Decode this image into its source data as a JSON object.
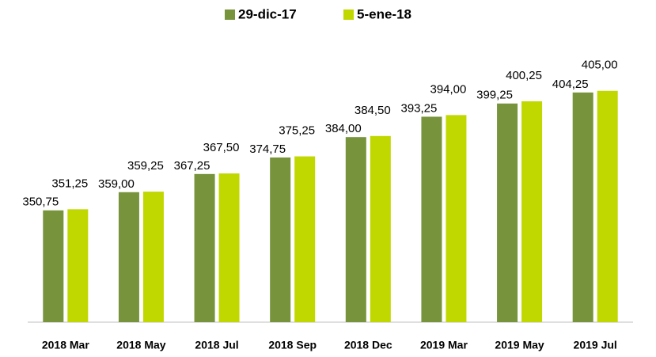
{
  "chart_data": {
    "type": "bar",
    "categories": [
      "2018 Mar",
      "2018 May",
      "2018 Jul",
      "2018 Sep",
      "2018 Dec",
      "2019 Mar",
      "2019 May",
      "2019 Jul"
    ],
    "series": [
      {
        "name": "29-dic-17",
        "color": "#77933c",
        "values": [
          350.75,
          359.0,
          367.25,
          374.75,
          384.0,
          393.25,
          399.25,
          404.25
        ],
        "value_labels": [
          "350,75",
          "359,00",
          "367,25",
          "374,75",
          "384,00",
          "393,25",
          "399,25",
          "404,25"
        ]
      },
      {
        "name": "5-ene-18",
        "color": "#c0d800",
        "values": [
          351.25,
          359.25,
          367.5,
          375.25,
          384.5,
          394.0,
          400.25,
          405.0
        ],
        "value_labels": [
          "351,25",
          "359,25",
          "367,50",
          "375,25",
          "384,50",
          "394,00",
          "400,25",
          "405,00"
        ]
      }
    ],
    "ylim": [
      300,
      420
    ],
    "legend": "top"
  }
}
